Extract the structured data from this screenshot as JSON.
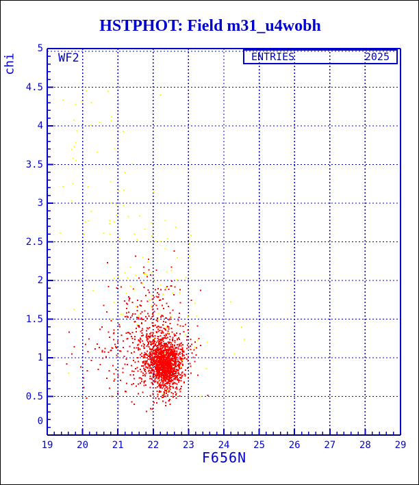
{
  "window": {
    "background": "#ffffff",
    "border_color": "#000000"
  },
  "colors": {
    "accent_blue": "#0000cc",
    "frame_bottom": "#000066",
    "point_red": "#ff0000",
    "point_yellow": "#ffff00"
  },
  "chart_data": {
    "type": "scatter",
    "title": "HSTPHOT: Field m31_u4wobh",
    "xlabel": "F656N",
    "ylabel": "chi",
    "xlim": [
      19,
      29
    ],
    "ylim": [
      0,
      5
    ],
    "x_tick_labels": [
      "19",
      "20",
      "21",
      "22",
      "23",
      "24",
      "25",
      "26",
      "27",
      "28",
      "29"
    ],
    "y_tick_labels": [
      "0",
      "0.5",
      "1",
      "1.5",
      "2",
      "2.5",
      "3",
      "3.5",
      "4",
      "4.5",
      "5"
    ],
    "x_minor_step": 0.2,
    "y_minor_step": 0.1,
    "x_grid": [
      20,
      21,
      22,
      23,
      24,
      25,
      26,
      27,
      28
    ],
    "y_grid": [
      0.5,
      1,
      1.5,
      2,
      2.5,
      3,
      3.5,
      4,
      4.5,
      5
    ],
    "grid_style": "dashed",
    "legend": {
      "label": "ENTRIES",
      "value": "2025",
      "position": "top-right"
    },
    "annotations": [
      {
        "text": "WF2",
        "position": "top-left"
      }
    ],
    "series": [
      {
        "name": "stars-chi-red",
        "color": "#ff0000",
        "marker": "square",
        "marker_px": 2,
        "seed": 7,
        "clip": [
          19.3,
          24.2,
          0.3,
          2.4
        ],
        "clusters": [
          {
            "n": 950,
            "cx": 22.38,
            "cy": 0.92,
            "sx": 0.21,
            "sy": 0.14
          },
          {
            "n": 420,
            "cx": 22.2,
            "cy": 1.02,
            "sx": 0.38,
            "sy": 0.23
          },
          {
            "n": 200,
            "cx": 21.95,
            "cy": 1.2,
            "sx": 0.6,
            "sy": 0.32,
            "tilt": -0.5
          },
          {
            "n": 80,
            "cx": 22.05,
            "cy": 1.7,
            "sx": 0.42,
            "sy": 0.28
          },
          {
            "n": 50,
            "cx": 20.8,
            "cy": 1.05,
            "sx": 0.55,
            "sy": 0.28
          },
          {
            "n": 45,
            "cx": 22.3,
            "cy": 0.55,
            "sx": 0.2,
            "sy": 0.1
          }
        ],
        "points": [
          [
            19.62,
            1.33
          ],
          [
            19.55,
            0.92
          ],
          [
            19.95,
            0.88
          ],
          [
            20.15,
            1.08
          ],
          [
            19.7,
            1.05
          ]
        ]
      },
      {
        "name": "flagged-chi-yellow",
        "color": "#ffff00",
        "marker": "square",
        "marker_px": 2,
        "seed": 13,
        "clip": [
          19.25,
          24.75,
          0.45,
          4.55
        ],
        "clusters": [
          {
            "n": 48,
            "cx": 21.7,
            "cy": 1.8,
            "sx": 0.7,
            "sy": 0.38
          },
          {
            "n": 26,
            "cx": 21.1,
            "cy": 2.65,
            "sx": 0.7,
            "sy": 0.4
          },
          {
            "n": 22,
            "cx": 20.3,
            "cy": 3.75,
            "sx": 0.5,
            "sy": 0.5
          },
          {
            "n": 14,
            "cx": 22.9,
            "cy": 1.05,
            "sx": 0.4,
            "sy": 0.28
          },
          {
            "n": 8,
            "cx": 22.6,
            "cy": 2.2,
            "sx": 0.5,
            "sy": 0.3
          }
        ],
        "points": [
          [
            24.19,
            1.72
          ],
          [
            24.5,
            1.4
          ],
          [
            24.58,
            1.24
          ],
          [
            24.3,
            1.05
          ],
          [
            19.45,
            4.33
          ],
          [
            20.1,
            4.45
          ],
          [
            19.8,
            4.28
          ],
          [
            20.25,
            4.3
          ],
          [
            21.15,
            3.93
          ],
          [
            19.6,
            0.8
          ],
          [
            23.35,
            0.5
          ],
          [
            22.2,
            4.4
          ]
        ]
      }
    ]
  }
}
